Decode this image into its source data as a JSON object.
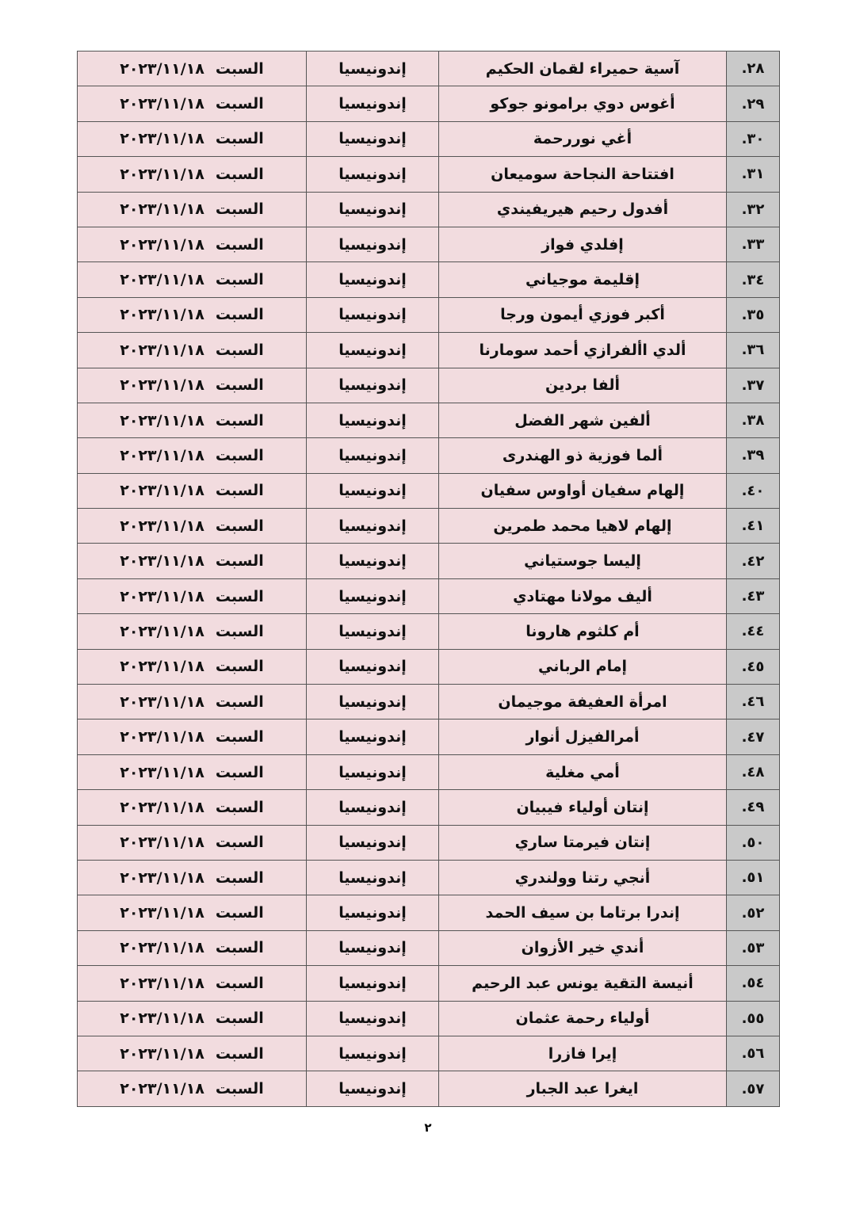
{
  "table": {
    "rows": [
      {
        "num": "٢٨.",
        "name": "آسية حميراء لقمان الحكيم",
        "country": "إندونيسيا",
        "day": "السبت",
        "date": "٢٠٢٣/١١/١٨"
      },
      {
        "num": "٢٩.",
        "name": "أغوس دوي برامونو جوكو",
        "country": "إندونيسيا",
        "day": "السبت",
        "date": "٢٠٢٣/١١/١٨"
      },
      {
        "num": "٣٠.",
        "name": "أغي نوررحمة",
        "country": "إندونيسيا",
        "day": "السبت",
        "date": "٢٠٢٣/١١/١٨"
      },
      {
        "num": "٣١.",
        "name": "افتتاحة النجاحة سوميعان",
        "country": "إندونيسيا",
        "day": "السبت",
        "date": "٢٠٢٣/١١/١٨"
      },
      {
        "num": "٣٢.",
        "name": "أفدول رحيم هيريفيندي",
        "country": "إندونيسيا",
        "day": "السبت",
        "date": "٢٠٢٣/١١/١٨"
      },
      {
        "num": "٣٣.",
        "name": "إفلدي فواز",
        "country": "إندونيسيا",
        "day": "السبت",
        "date": "٢٠٢٣/١١/١٨"
      },
      {
        "num": "٣٤.",
        "name": "إقليمة موجياني",
        "country": "إندونيسيا",
        "day": "السبت",
        "date": "٢٠٢٣/١١/١٨"
      },
      {
        "num": "٣٥.",
        "name": "أكبر فوزي أيمون ورجا",
        "country": "إندونيسيا",
        "day": "السبت",
        "date": "٢٠٢٣/١١/١٨"
      },
      {
        "num": "٣٦.",
        "name": "ألدي األفرازي أحمد سومارنا",
        "country": "إندونيسيا",
        "day": "السبت",
        "date": "٢٠٢٣/١١/١٨"
      },
      {
        "num": "٣٧.",
        "name": "ألفا بردين",
        "country": "إندونيسيا",
        "day": "السبت",
        "date": "٢٠٢٣/١١/١٨"
      },
      {
        "num": "٣٨.",
        "name": "ألفين شهر الفضل",
        "country": "إندونيسيا",
        "day": "السبت",
        "date": "٢٠٢٣/١١/١٨"
      },
      {
        "num": "٣٩.",
        "name": "ألما فوزية ذو الهندرى",
        "country": "إندونيسيا",
        "day": "السبت",
        "date": "٢٠٢٣/١١/١٨"
      },
      {
        "num": "٤٠.",
        "name": "إلهام سفيان أواوس سفيان",
        "country": "إندونيسيا",
        "day": "السبت",
        "date": "٢٠٢٣/١١/١٨"
      },
      {
        "num": "٤١.",
        "name": "إلهام لاهيا محمد طمرين",
        "country": "إندونيسيا",
        "day": "السبت",
        "date": "٢٠٢٣/١١/١٨"
      },
      {
        "num": "٤٢.",
        "name": "إليسا جوستياني",
        "country": "إندونيسيا",
        "day": "السبت",
        "date": "٢٠٢٣/١١/١٨"
      },
      {
        "num": "٤٣.",
        "name": "أليف مولانا مهتادي",
        "country": "إندونيسيا",
        "day": "السبت",
        "date": "٢٠٢٣/١١/١٨"
      },
      {
        "num": "٤٤.",
        "name": "أم كلثوم هارونا",
        "country": "إندونيسيا",
        "day": "السبت",
        "date": "٢٠٢٣/١١/١٨"
      },
      {
        "num": "٤٥.",
        "name": "إمام الرباني",
        "country": "إندونيسيا",
        "day": "السبت",
        "date": "٢٠٢٣/١١/١٨"
      },
      {
        "num": "٤٦.",
        "name": "امرأة العفيفة موجيمان",
        "country": "إندونيسيا",
        "day": "السبت",
        "date": "٢٠٢٣/١١/١٨"
      },
      {
        "num": "٤٧.",
        "name": "أمرالفيزل أنوار",
        "country": "إندونيسيا",
        "day": "السبت",
        "date": "٢٠٢٣/١١/١٨"
      },
      {
        "num": "٤٨.",
        "name": "أمي مغلية",
        "country": "إندونيسيا",
        "day": "السبت",
        "date": "٢٠٢٣/١١/١٨"
      },
      {
        "num": "٤٩.",
        "name": "إنتان أولياء فيبيان",
        "country": "إندونيسيا",
        "day": "السبت",
        "date": "٢٠٢٣/١١/١٨"
      },
      {
        "num": "٥٠.",
        "name": "إنتان فيرمتا ساري",
        "country": "إندونيسيا",
        "day": "السبت",
        "date": "٢٠٢٣/١١/١٨"
      },
      {
        "num": "٥١.",
        "name": "أنجي رتنا وولندري",
        "country": "إندونيسيا",
        "day": "السبت",
        "date": "٢٠٢٣/١١/١٨"
      },
      {
        "num": "٥٢.",
        "name": "إندرا برتاما بن سيف الحمد",
        "country": "إندونيسيا",
        "day": "السبت",
        "date": "٢٠٢٣/١١/١٨"
      },
      {
        "num": "٥٣.",
        "name": "أندي خير الأزوان",
        "country": "إندونيسيا",
        "day": "السبت",
        "date": "٢٠٢٣/١١/١٨"
      },
      {
        "num": "٥٤.",
        "name": "أنيسة التقية يونس عبد الرحيم",
        "country": "إندونيسيا",
        "day": "السبت",
        "date": "٢٠٢٣/١١/١٨"
      },
      {
        "num": "٥٥.",
        "name": "أولياء رحمة عثمان",
        "country": "إندونيسيا",
        "day": "السبت",
        "date": "٢٠٢٣/١١/١٨"
      },
      {
        "num": "٥٦.",
        "name": "إيرا فازرا",
        "country": "إندونيسيا",
        "day": "السبت",
        "date": "٢٠٢٣/١١/١٨"
      },
      {
        "num": "٥٧.",
        "name": "ايغرا عبد الجبار",
        "country": "إندونيسيا",
        "day": "السبت",
        "date": "٢٠٢٣/١١/١٨"
      }
    ]
  },
  "page_number": "٢"
}
